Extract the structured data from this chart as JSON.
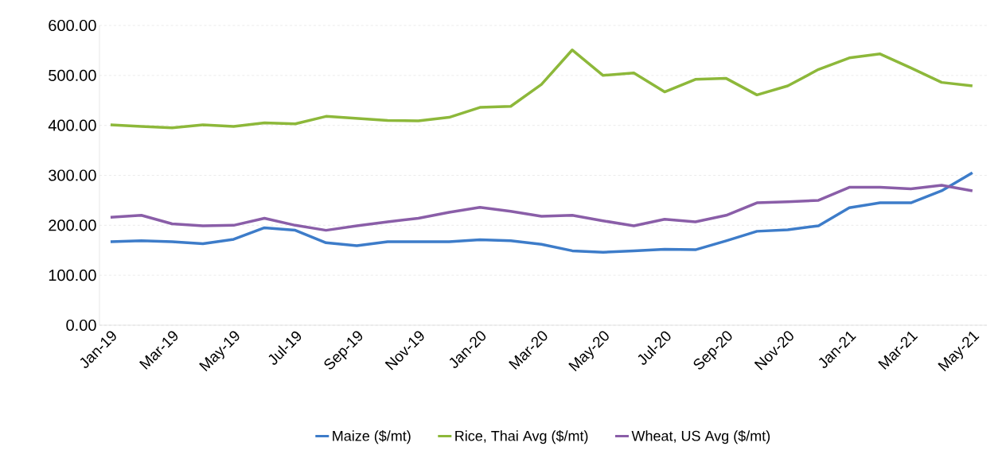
{
  "chart_data": {
    "type": "line",
    "categories": [
      "Jan-19",
      null,
      "Mar-19",
      null,
      "May-19",
      null,
      "Jul-19",
      null,
      "Sep-19",
      null,
      "Nov-19",
      null,
      "Jan-20",
      null,
      "Mar-20",
      null,
      "May-20",
      null,
      "Jul-20",
      null,
      "Sep-20",
      null,
      "Nov-20",
      null,
      "Jan-21",
      null,
      "Mar-21",
      null,
      "May-21"
    ],
    "series": [
      {
        "name": "Maize ($/mt)",
        "color": "#3d7cc9",
        "values": [
          167,
          169,
          167,
          163,
          172,
          195,
          190,
          165,
          159,
          167,
          167,
          167,
          171,
          169,
          162,
          149,
          146,
          149,
          152,
          151,
          169,
          188,
          191,
          199,
          235,
          245,
          245,
          269,
          305
        ]
      },
      {
        "name": "Rice, Thai Avg ($/mt)",
        "color": "#8db83a",
        "values": [
          401,
          398,
          395,
          401,
          398,
          405,
          403,
          418,
          414,
          410,
          409,
          416,
          436,
          438,
          482,
          551,
          500,
          505,
          467,
          492,
          494,
          461,
          479,
          512,
          535,
          543,
          515,
          486,
          479
        ]
      },
      {
        "name": "Wheat, US  Avg ($/mt)",
        "color": "#8a5ea8",
        "values": [
          216,
          220,
          203,
          199,
          200,
          214,
          200,
          190,
          199,
          207,
          214,
          226,
          236,
          228,
          218,
          220,
          209,
          199,
          212,
          207,
          220,
          245,
          247,
          250,
          276,
          276,
          273,
          280,
          269
        ]
      }
    ],
    "ylim": [
      0,
      600
    ],
    "yticks": [
      {
        "value": 0,
        "label": "0.00"
      },
      {
        "value": 100,
        "label": "100.00"
      },
      {
        "value": 200,
        "label": "200.00"
      },
      {
        "value": 300,
        "label": "300.00"
      },
      {
        "value": 400,
        "label": "400.00"
      },
      {
        "value": 500,
        "label": "500.00"
      },
      {
        "value": 600,
        "label": "600.00"
      }
    ],
    "grid": "y",
    "legend": "bottom",
    "marker": "none",
    "line_style": "solid"
  }
}
